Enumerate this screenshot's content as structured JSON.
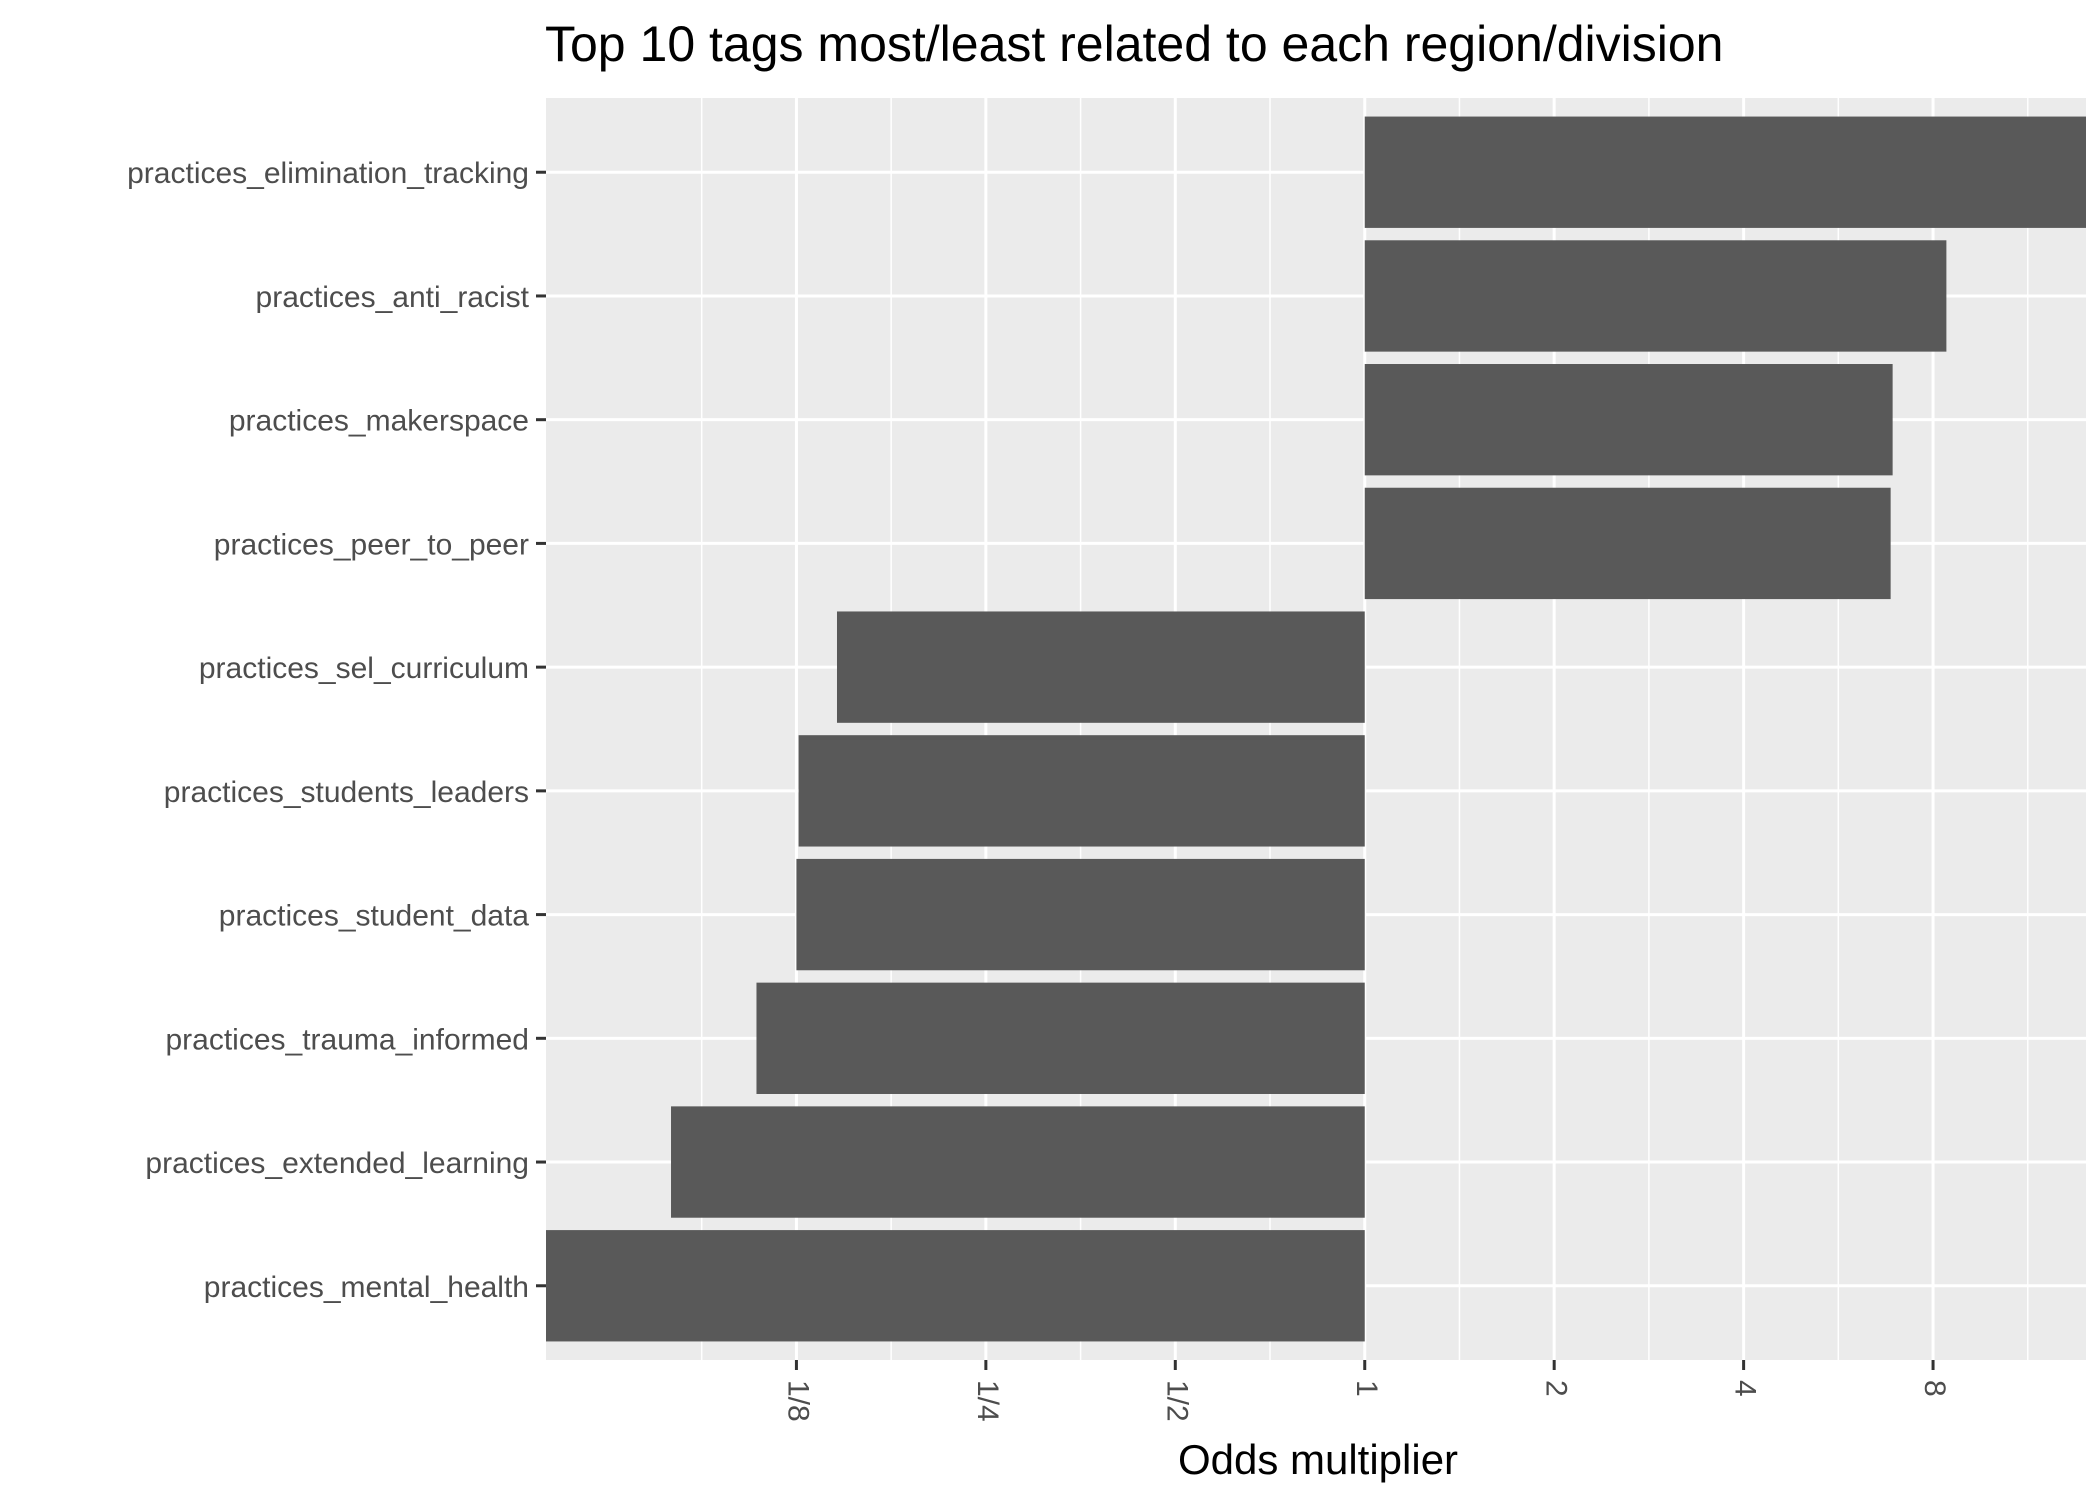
{
  "chart_data": {
    "type": "bar",
    "orientation": "horizontal",
    "title": "Top 10 tags most/least related to each region/division",
    "xlabel": "Odds multiplier",
    "ylabel": "",
    "x_scale": "log2",
    "xlim": [
      0.05,
      14.0
    ],
    "baseline": 1,
    "grid": true,
    "legend": "none",
    "x_ticks": [
      {
        "value": 0.125,
        "label": "1/8"
      },
      {
        "value": 0.25,
        "label": "1/4"
      },
      {
        "value": 0.5,
        "label": "1/2"
      },
      {
        "value": 1,
        "label": "1"
      },
      {
        "value": 2,
        "label": "2"
      },
      {
        "value": 4,
        "label": "4"
      },
      {
        "value": 8,
        "label": "8"
      }
    ],
    "categories": [
      "practices_elimination_tracking",
      "practices_anti_racist",
      "practices_makerspace",
      "practices_peer_to_peer",
      "practices_sel_curriculum",
      "practices_students_leaders",
      "practices_student_data",
      "practices_trauma_informed",
      "practices_extended_learning",
      "practices_mental_health"
    ],
    "values": [
      14.0,
      8.4,
      6.9,
      6.85,
      0.145,
      0.126,
      0.125,
      0.108,
      0.079,
      0.05
    ],
    "colors": {
      "bar": "#595959",
      "panel": "#ebebeb",
      "grid": "#ffffff",
      "tick": "#333333",
      "text": "#4d4d4d"
    }
  }
}
